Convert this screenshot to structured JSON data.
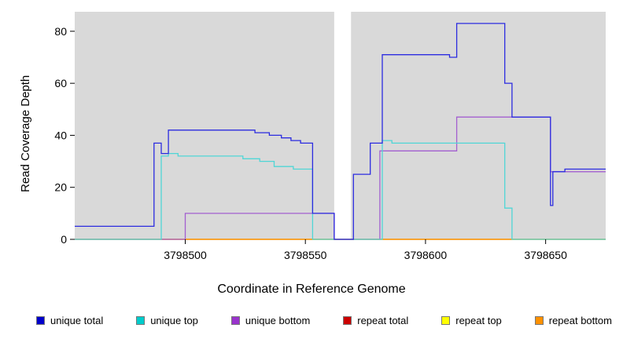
{
  "figure": {
    "xlabel": "Coordinate in Reference Genome",
    "ylabel": "Read Coverage Depth",
    "plot_bg": "#d9d9d9",
    "axis_color": "#000000"
  },
  "chart_data": {
    "type": "line",
    "step": true,
    "title": "",
    "xlabel": "Coordinate in Reference Genome",
    "ylabel": "Read Coverage Depth",
    "xlim": [
      3798454,
      3798675
    ],
    "ylim": [
      0,
      87.5
    ],
    "x_ticks": [
      3798500,
      3798550,
      3798600,
      3798650
    ],
    "y_ticks": [
      0,
      20,
      40,
      60,
      80
    ],
    "grid": false,
    "legend_position": "bottom",
    "gap_band": {
      "x0": 3798562,
      "x1": 3798569,
      "color": "#ffffff"
    },
    "series": [
      {
        "name": "repeat total",
        "color": "#cc0000",
        "points": [
          [
            3798454,
            0
          ],
          [
            3798675,
            0
          ]
        ]
      },
      {
        "name": "repeat top",
        "color": "#ffff00",
        "points": [
          [
            3798454,
            0
          ],
          [
            3798675,
            0
          ]
        ]
      },
      {
        "name": "repeat bottom",
        "color": "#ff9100",
        "points": [
          [
            3798454,
            0
          ],
          [
            3798675,
            0
          ]
        ]
      },
      {
        "name": "unique bottom",
        "color": "#a35fd0",
        "points": [
          [
            3798454,
            0
          ],
          [
            3798500,
            0
          ],
          [
            3798500,
            10
          ],
          [
            3798562,
            10
          ],
          [
            3798562,
            0
          ],
          [
            3798581,
            0
          ],
          [
            3798581,
            34
          ],
          [
            3798613,
            34
          ],
          [
            3798613,
            47
          ],
          [
            3798652,
            47
          ],
          [
            3798652,
            26
          ],
          [
            3798675,
            26
          ]
        ]
      },
      {
        "name": "unique top",
        "color": "#4fd6d6",
        "points": [
          [
            3798454,
            0
          ],
          [
            3798490,
            0
          ],
          [
            3798490,
            32
          ],
          [
            3798493,
            32
          ],
          [
            3798493,
            33
          ],
          [
            3798497,
            33
          ],
          [
            3798497,
            32
          ],
          [
            3798524,
            32
          ],
          [
            3798524,
            31
          ],
          [
            3798531,
            31
          ],
          [
            3798531,
            30
          ],
          [
            3798537,
            30
          ],
          [
            3798537,
            28
          ],
          [
            3798545,
            28
          ],
          [
            3798545,
            27
          ],
          [
            3798553,
            27
          ],
          [
            3798553,
            0
          ],
          [
            3798582,
            0
          ],
          [
            3798582,
            38
          ],
          [
            3798586,
            38
          ],
          [
            3798586,
            37
          ],
          [
            3798633,
            37
          ],
          [
            3798633,
            12
          ],
          [
            3798636,
            12
          ],
          [
            3798636,
            0
          ],
          [
            3798675,
            0
          ]
        ]
      },
      {
        "name": "unique total",
        "color": "#2b2be0",
        "points": [
          [
            3798454,
            5
          ],
          [
            3798487,
            5
          ],
          [
            3798487,
            37
          ],
          [
            3798490,
            37
          ],
          [
            3798490,
            33
          ],
          [
            3798493,
            33
          ],
          [
            3798493,
            42
          ],
          [
            3798529,
            42
          ],
          [
            3798529,
            41
          ],
          [
            3798535,
            41
          ],
          [
            3798535,
            40
          ],
          [
            3798540,
            40
          ],
          [
            3798540,
            39
          ],
          [
            3798544,
            39
          ],
          [
            3798544,
            38
          ],
          [
            3798548,
            38
          ],
          [
            3798548,
            37
          ],
          [
            3798553,
            37
          ],
          [
            3798553,
            10
          ],
          [
            3798562,
            10
          ],
          [
            3798562,
            0
          ],
          [
            3798570,
            0
          ],
          [
            3798570,
            25
          ],
          [
            3798577,
            25
          ],
          [
            3798577,
            37
          ],
          [
            3798582,
            37
          ],
          [
            3798582,
            71
          ],
          [
            3798610,
            71
          ],
          [
            3798610,
            70
          ],
          [
            3798613,
            70
          ],
          [
            3798613,
            83
          ],
          [
            3798633,
            83
          ],
          [
            3798633,
            60
          ],
          [
            3798636,
            60
          ],
          [
            3798636,
            47
          ],
          [
            3798652,
            47
          ],
          [
            3798652,
            13
          ],
          [
            3798653,
            13
          ],
          [
            3798653,
            26
          ],
          [
            3798658,
            26
          ],
          [
            3798658,
            27
          ],
          [
            3798675,
            27
          ]
        ]
      }
    ],
    "legend": [
      {
        "label": "unique total",
        "color": "#0000cc"
      },
      {
        "label": "unique top",
        "color": "#00cccc"
      },
      {
        "label": "unique bottom",
        "color": "#9933cc"
      },
      {
        "label": "repeat total",
        "color": "#cc0000"
      },
      {
        "label": "repeat top",
        "color": "#ffff00"
      },
      {
        "label": "repeat bottom",
        "color": "#ff9100"
      }
    ]
  }
}
